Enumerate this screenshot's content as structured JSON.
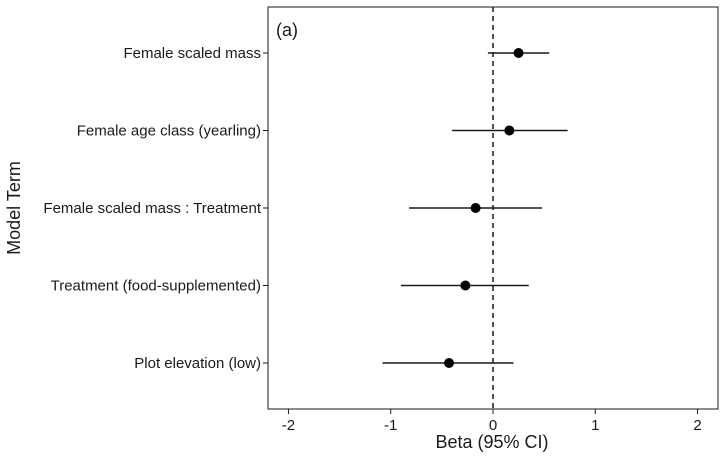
{
  "chart_data": {
    "type": "scatter",
    "subtype": "forest-plot",
    "panel_label": "(a)",
    "xlabel": "Beta (95% CI)",
    "ylabel": "Model Term",
    "xlim": [
      -2.2,
      2.2
    ],
    "xticks": [
      -2,
      -1,
      0,
      1,
      2
    ],
    "xtick_labels": [
      "-2",
      "-1",
      "0",
      "1",
      "2"
    ],
    "reference_line": 0,
    "grid": false,
    "terms": [
      {
        "label": "Female scaled mass",
        "estimate": 0.25,
        "lower": -0.05,
        "upper": 0.55
      },
      {
        "label": "Female age class (yearling)",
        "estimate": 0.16,
        "lower": -0.4,
        "upper": 0.73
      },
      {
        "label": "Female scaled mass : Treatment",
        "estimate": -0.17,
        "lower": -0.82,
        "upper": 0.48
      },
      {
        "label": "Treatment (food-supplemented)",
        "estimate": -0.27,
        "lower": -0.9,
        "upper": 0.35
      },
      {
        "label": "Plot elevation (low)",
        "estimate": -0.43,
        "lower": -1.08,
        "upper": 0.2
      }
    ]
  }
}
